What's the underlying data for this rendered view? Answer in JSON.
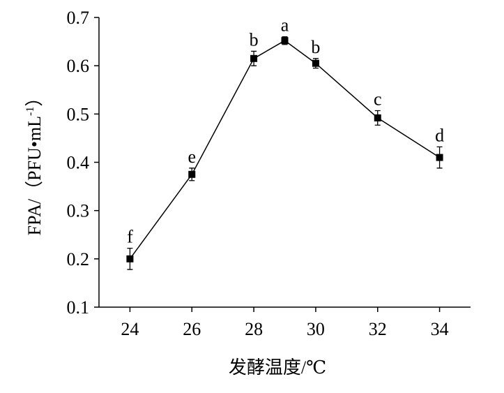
{
  "chart_data": {
    "type": "line",
    "x_label": "发酵温度/℃",
    "y_label": {
      "text": "FPA/（PFU•mL",
      "superscript": "-1",
      "suffix": "）"
    },
    "x": [
      24,
      26,
      28,
      29,
      30,
      32,
      34
    ],
    "series": [
      {
        "color": "#000000",
        "values": [
          0.2,
          0.375,
          0.615,
          0.652,
          0.605,
          0.492,
          0.41
        ],
        "errors": [
          0.022,
          0.013,
          0.015,
          0.008,
          0.01,
          0.015,
          0.022
        ],
        "annotations": [
          "f",
          "e",
          "b",
          "a",
          "b",
          "c",
          "d"
        ]
      }
    ],
    "xlim": [
      23,
      35
    ],
    "xticks": [
      24,
      26,
      28,
      30,
      32,
      34
    ],
    "ylim": [
      0.1,
      0.7
    ],
    "yticks": [
      0.1,
      0.2,
      0.3,
      0.4,
      0.5,
      0.6,
      0.7
    ]
  }
}
